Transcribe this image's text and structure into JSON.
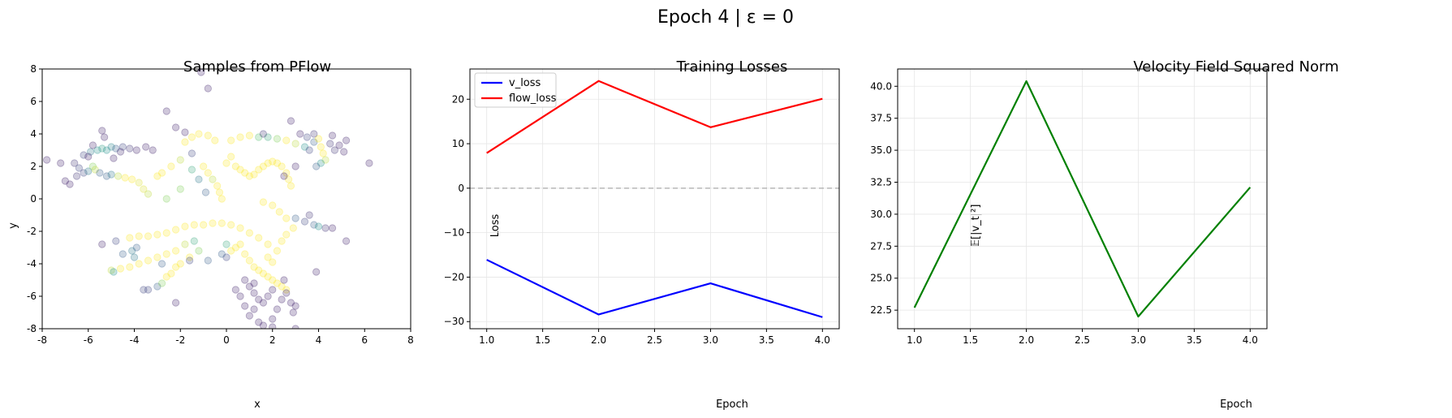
{
  "figure": {
    "title": "Epoch 4 | ε = 0"
  },
  "chart_data": [
    {
      "type": "scatter",
      "title": "Samples from PFlow",
      "xlabel": "x",
      "ylabel": "y",
      "xlim": [
        -8,
        8
      ],
      "ylim": [
        -8,
        8
      ],
      "xticks": [
        -8,
        -6,
        -4,
        -2,
        0,
        2,
        4,
        6,
        8
      ],
      "yticks": [
        -8,
        -6,
        -4,
        -2,
        0,
        2,
        4,
        6,
        8
      ],
      "grid": false,
      "colormap": "viridis",
      "alpha": 0.25,
      "points": [
        [
          -7.8,
          2.4,
          0.1
        ],
        [
          -7.2,
          2.2,
          0.1
        ],
        [
          -7.0,
          1.1,
          0.1
        ],
        [
          -6.8,
          0.9,
          0.1
        ],
        [
          -6.5,
          1.4,
          0.15
        ],
        [
          -6.6,
          2.2,
          0.15
        ],
        [
          -6.4,
          1.9,
          0.2
        ],
        [
          -6.2,
          1.6,
          0.2
        ],
        [
          -6.0,
          1.7,
          0.4
        ],
        [
          -5.8,
          2.0,
          0.8
        ],
        [
          -5.7,
          1.8,
          0.9
        ],
        [
          -5.5,
          1.6,
          0.3
        ],
        [
          -5.2,
          1.4,
          0.3
        ],
        [
          -5.0,
          1.5,
          0.4
        ],
        [
          -4.7,
          1.4,
          0.9
        ],
        [
          -4.4,
          1.3,
          1.0
        ],
        [
          -4.1,
          1.2,
          1.0
        ],
        [
          -3.8,
          1.0,
          0.95
        ],
        [
          -3.6,
          0.6,
          0.95
        ],
        [
          -3.4,
          0.3,
          0.9
        ],
        [
          -6.2,
          2.7,
          0.2
        ],
        [
          -5.9,
          2.9,
          0.4
        ],
        [
          -5.6,
          3.0,
          0.5
        ],
        [
          -5.4,
          3.1,
          0.55
        ],
        [
          -5.2,
          3.0,
          0.5
        ],
        [
          -5.0,
          3.2,
          0.45
        ],
        [
          -4.8,
          3.1,
          0.3
        ],
        [
          -4.5,
          3.2,
          0.2
        ],
        [
          -4.2,
          3.1,
          0.15
        ],
        [
          -3.9,
          3.0,
          0.1
        ],
        [
          -3.5,
          3.2,
          0.1
        ],
        [
          -5.3,
          3.8,
          0.1
        ],
        [
          -5.4,
          4.2,
          0.1
        ],
        [
          -5.8,
          3.3,
          0.1
        ],
        [
          -6.0,
          2.6,
          0.1
        ],
        [
          -4.9,
          2.5,
          0.1
        ],
        [
          -4.6,
          2.9,
          0.12
        ],
        [
          -3.2,
          3.0,
          0.1
        ],
        [
          -3.0,
          1.4,
          1.0
        ],
        [
          -2.8,
          1.6,
          1.0
        ],
        [
          -2.4,
          2.0,
          1.0
        ],
        [
          -2.0,
          2.4,
          0.9
        ],
        [
          -1.8,
          3.5,
          1.0
        ],
        [
          -1.5,
          3.8,
          1.0
        ],
        [
          -1.2,
          4.0,
          1.0
        ],
        [
          -0.8,
          3.9,
          1.0
        ],
        [
          -0.5,
          3.6,
          1.0
        ],
        [
          -1.0,
          2.0,
          1.0
        ],
        [
          -0.8,
          1.6,
          1.0
        ],
        [
          -0.6,
          1.2,
          0.9
        ],
        [
          -0.4,
          0.8,
          1.0
        ],
        [
          -0.3,
          0.4,
          1.0
        ],
        [
          -0.2,
          0.0,
          1.0
        ],
        [
          0.0,
          2.2,
          1.0
        ],
        [
          0.2,
          2.6,
          1.0
        ],
        [
          0.4,
          2.0,
          1.0
        ],
        [
          0.6,
          1.8,
          1.0
        ],
        [
          0.8,
          1.6,
          1.0
        ],
        [
          1.0,
          1.4,
          1.0
        ],
        [
          1.2,
          1.5,
          1.0
        ],
        [
          1.4,
          1.8,
          1.0
        ],
        [
          1.6,
          2.0,
          1.0
        ],
        [
          1.8,
          2.2,
          1.0
        ],
        [
          2.0,
          2.3,
          1.0
        ],
        [
          2.2,
          2.2,
          1.0
        ],
        [
          2.4,
          2.0,
          1.0
        ],
        [
          2.6,
          1.6,
          1.0
        ],
        [
          2.7,
          1.2,
          1.0
        ],
        [
          2.8,
          0.8,
          1.0
        ],
        [
          0.2,
          3.6,
          1.0
        ],
        [
          0.6,
          3.8,
          1.0
        ],
        [
          1.0,
          3.9,
          1.0
        ],
        [
          1.4,
          3.8,
          0.7
        ],
        [
          1.8,
          3.8,
          0.6
        ],
        [
          2.2,
          3.7,
          0.8
        ],
        [
          2.6,
          3.6,
          1.0
        ],
        [
          3.0,
          3.4,
          0.9
        ],
        [
          3.4,
          3.2,
          0.5
        ],
        [
          -2.6,
          0.0,
          0.8
        ],
        [
          -2.0,
          0.6,
          0.8
        ],
        [
          -1.5,
          1.8,
          0.6
        ],
        [
          -1.2,
          1.2,
          0.4
        ],
        [
          -0.9,
          0.4,
          0.3
        ],
        [
          -1.5,
          2.8,
          0.2
        ],
        [
          -2.2,
          4.4,
          0.1
        ],
        [
          -1.8,
          4.1,
          0.1
        ],
        [
          -1.1,
          7.8,
          0.1
        ],
        [
          -0.8,
          6.8,
          0.1
        ],
        [
          -2.6,
          5.4,
          0.1
        ],
        [
          1.6,
          4.0,
          0.15
        ],
        [
          2.8,
          4.8,
          0.1
        ],
        [
          3.2,
          4.0,
          0.1
        ],
        [
          3.5,
          3.8,
          0.2
        ],
        [
          3.0,
          2.0,
          0.1
        ],
        [
          2.5,
          1.4,
          0.1
        ],
        [
          3.6,
          3.0,
          0.2
        ],
        [
          3.8,
          3.5,
          0.3
        ],
        [
          4.0,
          3.7,
          1.0
        ],
        [
          4.1,
          3.2,
          1.0
        ],
        [
          4.2,
          2.8,
          1.0
        ],
        [
          4.3,
          2.4,
          0.9
        ],
        [
          4.1,
          2.2,
          0.5
        ],
        [
          3.9,
          2.0,
          0.3
        ],
        [
          4.5,
          3.4,
          0.15
        ],
        [
          4.7,
          3.0,
          0.15
        ],
        [
          4.9,
          3.3,
          0.1
        ],
        [
          5.1,
          2.9,
          0.1
        ],
        [
          5.2,
          3.6,
          0.1
        ],
        [
          6.2,
          2.2,
          0.1
        ],
        [
          4.6,
          3.9,
          0.1
        ],
        [
          3.8,
          4.0,
          0.15
        ],
        [
          -4.2,
          -2.4,
          1.0
        ],
        [
          -3.8,
          -2.3,
          1.0
        ],
        [
          -3.4,
          -2.3,
          1.0
        ],
        [
          -3.0,
          -2.2,
          1.0
        ],
        [
          -2.6,
          -2.1,
          1.0
        ],
        [
          -2.2,
          -1.9,
          1.0
        ],
        [
          -1.8,
          -1.7,
          1.0
        ],
        [
          -1.4,
          -1.6,
          1.0
        ],
        [
          -1.0,
          -1.6,
          1.0
        ],
        [
          -0.6,
          -1.5,
          1.0
        ],
        [
          -0.2,
          -1.5,
          1.0
        ],
        [
          0.2,
          -1.6,
          1.0
        ],
        [
          0.6,
          -1.8,
          1.0
        ],
        [
          1.0,
          -2.1,
          1.0
        ],
        [
          1.4,
          -2.4,
          1.0
        ],
        [
          1.8,
          -2.8,
          1.0
        ],
        [
          2.2,
          -3.2,
          1.0
        ],
        [
          2.4,
          -2.6,
          1.0
        ],
        [
          2.6,
          -2.2,
          1.0
        ],
        [
          2.9,
          -1.8,
          1.0
        ],
        [
          2.6,
          -1.2,
          1.0
        ],
        [
          2.3,
          -0.8,
          1.0
        ],
        [
          2.0,
          -0.4,
          1.0
        ],
        [
          1.6,
          -0.2,
          1.0
        ],
        [
          3.0,
          -1.2,
          0.3
        ],
        [
          3.4,
          -1.4,
          0.2
        ],
        [
          3.8,
          -1.6,
          0.3
        ],
        [
          4.0,
          -1.7,
          0.5
        ],
        [
          4.3,
          -1.8,
          0.15
        ],
        [
          4.6,
          -1.8,
          0.1
        ],
        [
          3.6,
          -1.0,
          0.15
        ],
        [
          5.2,
          -2.6,
          0.1
        ],
        [
          -5.0,
          -4.4,
          0.9
        ],
        [
          -4.6,
          -4.3,
          1.0
        ],
        [
          -4.2,
          -4.2,
          1.0
        ],
        [
          -3.8,
          -4.0,
          1.0
        ],
        [
          -3.4,
          -3.8,
          1.0
        ],
        [
          -3.0,
          -3.6,
          1.0
        ],
        [
          -2.6,
          -3.4,
          1.0
        ],
        [
          -2.2,
          -3.2,
          1.0
        ],
        [
          -1.8,
          -2.8,
          0.9
        ],
        [
          -1.4,
          -2.6,
          0.6
        ],
        [
          -4.1,
          -3.2,
          0.4
        ],
        [
          -4.0,
          -3.6,
          0.4
        ],
        [
          -3.9,
          -3.0,
          0.3
        ],
        [
          -4.8,
          -2.6,
          0.2
        ],
        [
          -5.4,
          -2.8,
          0.1
        ],
        [
          -4.9,
          -4.5,
          0.5
        ],
        [
          -3.4,
          -5.6,
          0.2
        ],
        [
          -3.0,
          -5.4,
          0.3
        ],
        [
          -2.8,
          -5.2,
          0.8
        ],
        [
          -2.6,
          -4.8,
          1.0
        ],
        [
          -2.4,
          -4.6,
          1.0
        ],
        [
          -2.2,
          -4.2,
          1.0
        ],
        [
          -2.0,
          -4.0,
          1.0
        ],
        [
          -1.6,
          -3.6,
          1.0
        ],
        [
          -1.2,
          -3.2,
          0.8
        ],
        [
          -0.8,
          -3.8,
          0.3
        ],
        [
          -2.2,
          -6.4,
          0.1
        ],
        [
          0.0,
          -2.8,
          0.6
        ],
        [
          0.2,
          -3.2,
          1.0
        ],
        [
          0.4,
          -3.0,
          1.0
        ],
        [
          0.6,
          -2.8,
          1.0
        ],
        [
          0.8,
          -3.4,
          1.0
        ],
        [
          1.0,
          -3.8,
          1.0
        ],
        [
          1.2,
          -4.2,
          1.0
        ],
        [
          1.4,
          -4.4,
          1.0
        ],
        [
          1.6,
          -4.6,
          1.0
        ],
        [
          1.8,
          -4.8,
          1.0
        ],
        [
          2.0,
          -5.0,
          1.0
        ],
        [
          2.2,
          -5.2,
          1.0
        ],
        [
          2.4,
          -5.4,
          1.0
        ],
        [
          2.6,
          -5.6,
          1.0
        ],
        [
          1.8,
          -3.6,
          1.0
        ],
        [
          2.0,
          -3.9,
          1.0
        ],
        [
          0.0,
          -3.6,
          0.2
        ],
        [
          -0.2,
          -3.4,
          0.3
        ],
        [
          0.8,
          -5.0,
          0.1
        ],
        [
          1.0,
          -5.4,
          0.1
        ],
        [
          1.2,
          -5.8,
          0.1
        ],
        [
          1.4,
          -6.2,
          0.1
        ],
        [
          1.6,
          -6.4,
          0.1
        ],
        [
          1.2,
          -6.8,
          0.1
        ],
        [
          1.0,
          -7.2,
          0.1
        ],
        [
          1.4,
          -7.6,
          0.1
        ],
        [
          1.6,
          -7.8,
          0.1
        ],
        [
          2.0,
          -7.4,
          0.1
        ],
        [
          2.2,
          -6.8,
          0.1
        ],
        [
          2.4,
          -6.2,
          0.1
        ],
        [
          2.6,
          -5.8,
          0.1
        ],
        [
          2.8,
          -6.4,
          0.1
        ],
        [
          2.9,
          -7.0,
          0.1
        ],
        [
          3.0,
          -6.6,
          0.1
        ],
        [
          1.8,
          -6.0,
          0.1
        ],
        [
          2.0,
          -5.6,
          0.1
        ],
        [
          0.6,
          -6.0,
          0.1
        ],
        [
          0.8,
          -6.6,
          0.1
        ],
        [
          3.0,
          -8.0,
          0.1
        ],
        [
          2.0,
          -7.9,
          0.1
        ],
        [
          0.4,
          -5.6,
          0.1
        ],
        [
          1.2,
          -5.2,
          0.1
        ],
        [
          2.5,
          -5.0,
          0.1
        ],
        [
          3.9,
          -4.5,
          0.1
        ],
        [
          -3.6,
          -5.6,
          0.2
        ],
        [
          -2.8,
          -4.0,
          0.3
        ],
        [
          -1.6,
          -3.8,
          0.2
        ],
        [
          -4.5,
          -3.4,
          0.3
        ]
      ]
    },
    {
      "type": "line",
      "title": "Training Losses",
      "xlabel": "Epoch",
      "ylabel": "Loss",
      "x": [
        1.0,
        2.0,
        3.0,
        4.0
      ],
      "xticks": [
        1.0,
        1.5,
        2.0,
        2.5,
        3.0,
        3.5,
        4.0
      ],
      "xtick_labels": [
        "1.0",
        "1.5",
        "2.0",
        "2.5",
        "3.0",
        "3.5",
        "4.0"
      ],
      "yticks": [
        -30,
        -20,
        -10,
        0,
        10,
        20
      ],
      "ytick_labels": [
        "−30",
        "−20",
        "−10",
        "0",
        "10",
        "20"
      ],
      "xlim": [
        0.85,
        4.15
      ],
      "ylim": [
        -31.6,
        26.8
      ],
      "grid": true,
      "legend": "top-left",
      "reference_line": {
        "y": 0,
        "color": "#aaaaaa",
        "style": "dashed"
      },
      "series": [
        {
          "name": "v_loss",
          "color": "#0000ff",
          "values": [
            -16.1,
            -28.4,
            -21.4,
            -29.0
          ]
        },
        {
          "name": "flow_loss",
          "color": "#ff0000",
          "values": [
            7.9,
            24.1,
            13.7,
            20.1
          ]
        }
      ]
    },
    {
      "type": "line",
      "title": "Velocity Field Squared Norm",
      "xlabel": "Epoch",
      "ylabel": "𝔼[|v_t|²]",
      "x": [
        1.0,
        2.0,
        3.0,
        4.0
      ],
      "xticks": [
        1.0,
        1.5,
        2.0,
        2.5,
        3.0,
        3.5,
        4.0
      ],
      "xtick_labels": [
        "1.0",
        "1.5",
        "2.0",
        "2.5",
        "3.0",
        "3.5",
        "4.0"
      ],
      "yticks": [
        22.5,
        25.0,
        27.5,
        30.0,
        32.5,
        35.0,
        37.5,
        40.0
      ],
      "ytick_labels": [
        "22.5",
        "25.0",
        "27.5",
        "30.0",
        "32.5",
        "35.0",
        "37.5",
        "40.0"
      ],
      "xlim": [
        0.85,
        4.15
      ],
      "ylim": [
        21.05,
        41.35
      ],
      "grid": true,
      "series": [
        {
          "color": "#008000",
          "values": [
            22.7,
            40.4,
            22.0,
            32.1
          ]
        }
      ]
    }
  ]
}
